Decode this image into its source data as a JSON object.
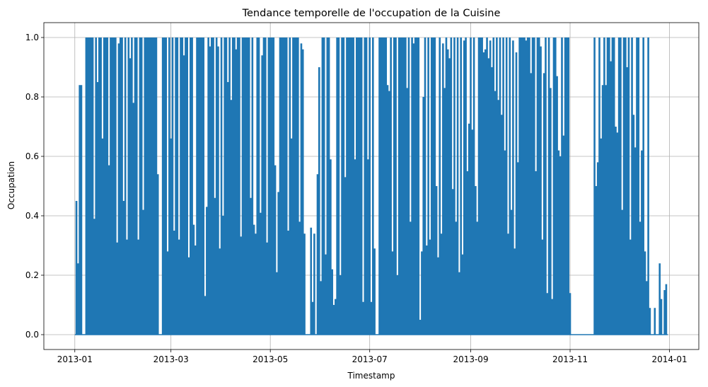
{
  "chart_data": {
    "type": "line",
    "title": "Tendance temporelle de l'occupation de la Cuisine",
    "xlabel": "Timestamp",
    "ylabel": "Occupation",
    "xlim": [
      "2012-12-13",
      "2014-01-19"
    ],
    "ylim": [
      -0.05,
      1.05
    ],
    "grid": true,
    "series_color": "#1f77b4",
    "x_ticks": [
      "2013-01-01",
      "2013-03-01",
      "2013-05-01",
      "2013-07-01",
      "2013-09-01",
      "2013-11-01",
      "2014-01-01"
    ],
    "x_tick_labels": [
      "2013-01",
      "2013-03",
      "2013-05",
      "2013-07",
      "2013-09",
      "2013-11",
      "2014-01"
    ],
    "y_ticks": [
      0.0,
      0.2,
      0.4,
      0.6,
      0.8,
      1.0
    ],
    "y_tick_labels": [
      "0.0",
      "0.2",
      "0.4",
      "0.6",
      "0.8",
      "1.0"
    ],
    "series": [
      {
        "x_start": "2013-01-01",
        "x_end": "2013-12-31",
        "sampling": "daily peak occupation",
        "flat_zero_periods": [
          [
            "2013-11-03",
            "2013-11-15"
          ]
        ],
        "peak_values": [
          0,
          0.45,
          0.24,
          0.84,
          0.84,
          0,
          0,
          1,
          1,
          1,
          1,
          1,
          0.39,
          1,
          0.85,
          1,
          1,
          0.66,
          1,
          1,
          1,
          0.57,
          1,
          1,
          1,
          1,
          0.31,
          0.98,
          1,
          1,
          0.45,
          1,
          0.32,
          1,
          0.93,
          1,
          0.78,
          1,
          1,
          0.32,
          1,
          1,
          0.42,
          1,
          1,
          1,
          1,
          1,
          1,
          1,
          1,
          0.54,
          0,
          0,
          1,
          1,
          1,
          0.28,
          1,
          0.66,
          1,
          0.35,
          1,
          1,
          0.32,
          1,
          1,
          0.94,
          1,
          1,
          0.26,
          1,
          1,
          0.37,
          0.3,
          1,
          1,
          1,
          1,
          1,
          0.13,
          0.43,
          1,
          0.97,
          1,
          1,
          0.46,
          1,
          0.97,
          0.29,
          1,
          0.4,
          1,
          1,
          0.85,
          1,
          0.79,
          1,
          1,
          0.96,
          1,
          1,
          0.33,
          1,
          1,
          1,
          1,
          1,
          0.46,
          1,
          0.37,
          0.34,
          1,
          1,
          0.41,
          0.94,
          1,
          1,
          0.31,
          1,
          1,
          1,
          1,
          0.57,
          0.21,
          0.48,
          1,
          1,
          1,
          1,
          1,
          0.35,
          1,
          0.66,
          1,
          1,
          1,
          1,
          0.38,
          0.98,
          0.96,
          0.34,
          0,
          0,
          0,
          0.36,
          0.11,
          0.34,
          0,
          0.54,
          0.9,
          0.18,
          1,
          1,
          0.27,
          1,
          1,
          0.59,
          0.22,
          0.1,
          0.12,
          1,
          1,
          0.2,
          1,
          1,
          0.53,
          1,
          1,
          1,
          1,
          1,
          0.59,
          1,
          1,
          1,
          1,
          0.11,
          1,
          1,
          0.59,
          1,
          0.11,
          1,
          0.29,
          0,
          0,
          1,
          1,
          1,
          1,
          1,
          0.84,
          0.82,
          1,
          0.28,
          1,
          1,
          0.2,
          1,
          1,
          1,
          1,
          1,
          0.83,
          1,
          0.38,
          1,
          0.98,
          1,
          1,
          1,
          0.05,
          0.28,
          0.8,
          1,
          0.3,
          1,
          0.32,
          1,
          1,
          1,
          0.5,
          0.26,
          1,
          0.34,
          0.98,
          0.83,
          1,
          0.96,
          0.93,
          1,
          0.49,
          1,
          0.38,
          1,
          0.21,
          1,
          0.27,
          0.99,
          1,
          0.55,
          0.71,
          1,
          0.69,
          1,
          0.5,
          0.38,
          1,
          1,
          1,
          0.95,
          0.96,
          1,
          0.93,
          0.99,
          0.9,
          1,
          0.82,
          1,
          0.79,
          1,
          0.74,
          1,
          0.62,
          1,
          0.34,
          1,
          0.42,
          0.99,
          0.29,
          0.95,
          0.58,
          1,
          1,
          1,
          1,
          0.99,
          1,
          1,
          0.88,
          1,
          1,
          0.55,
          1,
          1,
          0.97,
          0.32,
          0.88,
          1,
          0.14,
          1,
          0.83,
          0.12,
          1,
          1,
          0.87,
          0.62,
          0.6,
          1,
          0.67,
          1,
          1,
          1,
          0.14,
          0,
          0,
          0,
          0,
          0,
          0,
          0,
          0,
          0,
          0,
          0,
          0,
          0,
          0,
          1,
          0.5,
          0.58,
          1,
          0.66,
          0.84,
          1,
          0.84,
          1,
          1,
          0.92,
          1,
          1,
          0.7,
          0.68,
          1,
          1,
          0.42,
          1,
          1,
          0.9,
          1,
          0.32,
          1,
          0.74,
          0.63,
          1,
          1,
          0.38,
          0.62,
          1,
          0.28,
          0.18,
          1,
          0.09,
          0,
          0,
          0.09,
          0,
          0,
          0.24,
          0.12,
          0,
          0.15,
          0.17,
          0
        ]
      }
    ]
  }
}
